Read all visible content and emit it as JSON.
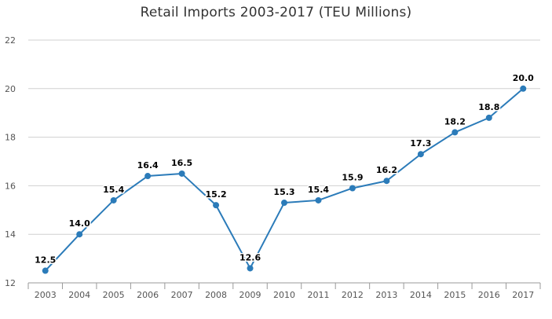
{
  "chart_data": {
    "type": "line",
    "title": "Retail Imports 2003-2017 (TEU Millions)",
    "xlabel": "",
    "ylabel": "",
    "categories": [
      "2003",
      "2004",
      "2005",
      "2006",
      "2007",
      "2008",
      "2009",
      "2010",
      "2011",
      "2012",
      "2013",
      "2014",
      "2015",
      "2016",
      "2017"
    ],
    "series": [
      {
        "values": [
          12.5,
          14.0,
          15.4,
          16.4,
          16.5,
          15.2,
          12.6,
          15.3,
          15.4,
          15.9,
          16.2,
          17.3,
          18.2,
          18.8,
          20.0
        ],
        "data_labels": [
          "12.5",
          "14.0",
          "15.4",
          "16.4",
          "16.5",
          "15.2",
          "12.6",
          "15.3",
          "15.4",
          "15.9",
          "16.2",
          "17.3",
          "18.2",
          "18.8",
          "20.0"
        ],
        "color": "#2b7bb9"
      }
    ],
    "ylim": [
      12,
      22
    ],
    "yticks": [
      "12",
      "14",
      "16",
      "18",
      "20",
      "22"
    ],
    "grid": true,
    "legend": "none"
  }
}
